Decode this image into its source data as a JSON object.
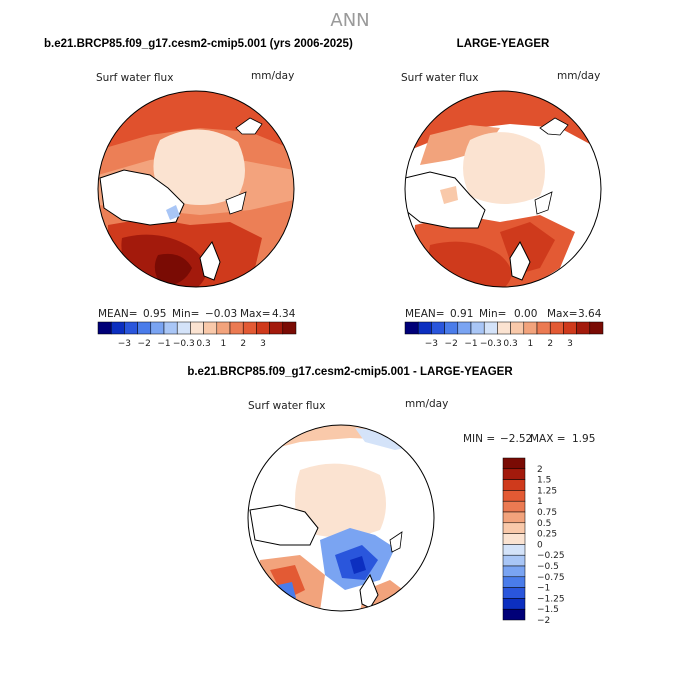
{
  "title": "ANN",
  "colors": {
    "scale": [
      "#000078",
      "#0c2fc0",
      "#2a56dc",
      "#4a7cea",
      "#7aa4f2",
      "#a9c6f6",
      "#d4e3f9",
      "#fbe3d1",
      "#f9c9aa",
      "#f2a37c",
      "#eb7a52",
      "#e35a34",
      "#cf3a1c",
      "#a31a0c",
      "#7a0b04"
    ],
    "land": "#ffffff",
    "ocean_default": "#f9d5bd"
  },
  "panels": [
    {
      "id": "left",
      "heading": "b.e21.BRCP85.f09_g17.cesm2-cmip5.001 (yrs 2006-2025)",
      "variable": "Surf water flux",
      "units": "mm/day",
      "stats": {
        "mean_label": "MEAN=",
        "mean": "0.95",
        "min_label": "Min=",
        "min": "−0.03",
        "max_label": "Max=",
        "max": "4.34"
      },
      "colorbar_ticks": [
        "−3",
        "−2",
        "−1",
        "−0.3",
        "0.3",
        "1",
        "2",
        "3"
      ]
    },
    {
      "id": "right",
      "heading": "LARGE-YEAGER",
      "variable": "Surf water flux",
      "units": "mm/day",
      "stats": {
        "mean_label": "MEAN=",
        "mean": "0.91",
        "min_label": "Min=",
        "min": "0.00",
        "max_label": "Max=",
        "max": "3.64"
      },
      "colorbar_ticks": [
        "−3",
        "−2",
        "−1",
        "−0.3",
        "0.3",
        "1",
        "2",
        "3"
      ]
    },
    {
      "id": "diff",
      "heading": "b.e21.BRCP85.f09_g17.cesm2-cmip5.001 - LARGE-YEAGER",
      "variable": "Surf water flux",
      "units": "mm/day",
      "stats": {
        "min_label": "MIN =",
        "min": "−2.52",
        "max_label": "MAX =",
        "max": "1.95"
      },
      "colorbar_ticks": [
        "2",
        "1.5",
        "1.25",
        "1",
        "0.75",
        "0.5",
        "0.25",
        "0",
        "−0.25",
        "−0.5",
        "−0.75",
        "−1",
        "−1.25",
        "−1.5",
        "−2"
      ]
    }
  ]
}
